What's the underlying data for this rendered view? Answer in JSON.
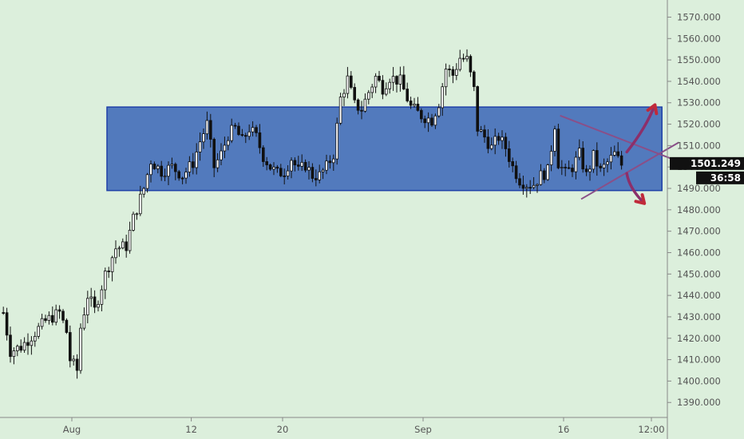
{
  "chart_data": {
    "type": "candlestick",
    "title": "",
    "xlabel": "",
    "ylabel": "",
    "ylim": [
      1383,
      1578
    ],
    "y_ticks": [
      1390,
      1400,
      1410,
      1420,
      1430,
      1440,
      1450,
      1460,
      1470,
      1480,
      1490,
      1500,
      1510,
      1520,
      1530,
      1540,
      1550,
      1560,
      1570
    ],
    "y_tick_labels": [
      "1390.000",
      "1400.000",
      "1410.000",
      "1420.000",
      "1430.000",
      "1440.000",
      "1450.000",
      "1460.000",
      "1470.000",
      "1480.000",
      "1490.000",
      "1500.000",
      "1510.000",
      "1520.000",
      "1530.000",
      "1540.000",
      "1550.000",
      "1560.000",
      "1570.000"
    ],
    "x_tick_labels": [
      "Aug",
      "12",
      "20",
      "Sep",
      "16",
      "12:00"
    ],
    "x_tick_index": [
      20,
      54,
      80,
      120,
      160,
      185
    ],
    "price_path": [
      [
        0,
        1432
      ],
      [
        2,
        1414
      ],
      [
        5,
        1416
      ],
      [
        8,
        1421
      ],
      [
        12,
        1428
      ],
      [
        16,
        1432
      ],
      [
        18,
        1423
      ],
      [
        19,
        1410
      ],
      [
        21,
        1405
      ],
      [
        22,
        1425
      ],
      [
        24,
        1440
      ],
      [
        26,
        1433
      ],
      [
        29,
        1450
      ],
      [
        32,
        1462
      ],
      [
        35,
        1463
      ],
      [
        37,
        1476
      ],
      [
        40,
        1490
      ],
      [
        42,
        1503
      ],
      [
        45,
        1498
      ],
      [
        48,
        1500
      ],
      [
        51,
        1496
      ],
      [
        54,
        1502
      ],
      [
        56,
        1512
      ],
      [
        58,
        1520
      ],
      [
        60,
        1500
      ],
      [
        62,
        1506
      ],
      [
        64,
        1515
      ],
      [
        66,
        1518
      ],
      [
        68,
        1512
      ],
      [
        70,
        1518
      ],
      [
        72,
        1514
      ],
      [
        74,
        1505
      ],
      [
        76,
        1500
      ],
      [
        78,
        1497
      ],
      [
        80,
        1498
      ],
      [
        82,
        1504
      ],
      [
        84,
        1498
      ],
      [
        86,
        1501
      ],
      [
        88,
        1496
      ],
      [
        90,
        1496
      ],
      [
        92,
        1500
      ],
      [
        94,
        1506
      ],
      [
        96,
        1532
      ],
      [
        98,
        1541
      ],
      [
        100,
        1529
      ],
      [
        102,
        1527
      ],
      [
        104,
        1535
      ],
      [
        106,
        1542
      ],
      [
        108,
        1537
      ],
      [
        110,
        1542
      ],
      [
        113,
        1540
      ],
      [
        116,
        1528
      ],
      [
        119,
        1524
      ],
      [
        122,
        1522
      ],
      [
        124,
        1530
      ],
      [
        126,
        1546
      ],
      [
        128,
        1543
      ],
      [
        130,
        1551
      ],
      [
        132,
        1550
      ],
      [
        134,
        1536
      ],
      [
        135,
        1518
      ],
      [
        137,
        1514
      ],
      [
        139,
        1509
      ],
      [
        141,
        1514
      ],
      [
        143,
        1509
      ],
      [
        145,
        1500
      ],
      [
        147,
        1494
      ],
      [
        149,
        1492
      ],
      [
        151,
        1492
      ],
      [
        153,
        1496
      ],
      [
        155,
        1498
      ],
      [
        157,
        1520
      ],
      [
        158,
        1502
      ],
      [
        160,
        1497
      ],
      [
        162,
        1500
      ],
      [
        164,
        1506
      ],
      [
        166,
        1496
      ],
      [
        168,
        1505
      ],
      [
        170,
        1498
      ],
      [
        172,
        1502
      ],
      [
        174,
        1506
      ],
      [
        176,
        1501
      ]
    ],
    "current_price": 1501.249,
    "current_price_label": "1501.249",
    "countdown_label": "36:58",
    "range_box": {
      "from_index": 30,
      "to_index": 188,
      "y_low": 1489,
      "y_high": 1528
    },
    "triangle_lines": [
      {
        "from": [
          159,
          1524
        ],
        "to": [
          186,
          1507
        ]
      },
      {
        "from": [
          165,
          1485
        ],
        "to": [
          186,
          1507
        ]
      }
    ],
    "projection_arrows": [
      {
        "from": [
          178,
          1507
        ],
        "to": [
          186,
          1529
        ]
      },
      {
        "from": [
          178,
          1497
        ],
        "to": [
          183,
          1483
        ]
      }
    ],
    "colors": {
      "background": "#dcefdc",
      "candle": "#111111",
      "range_box_fill": "#3a65b7",
      "range_box_stroke": "#1e3fa8",
      "triangle_lines": "#8a4f88",
      "arrows": "#8c2f6a",
      "arrow_heads": "#c02a3a",
      "price_badge": "#111111",
      "price_badge_text": "#ffffff"
    }
  }
}
